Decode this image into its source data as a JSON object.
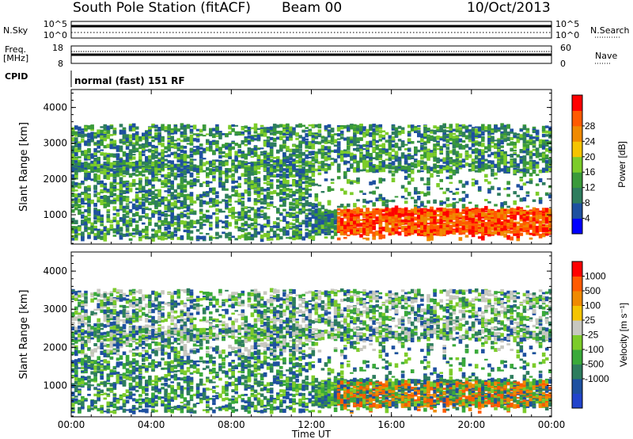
{
  "header": {
    "station": "South Pole Station (fitACF)",
    "beam": "Beam 00",
    "date": "10/Oct/2013"
  },
  "strips": {
    "nsky_label": "N.Sky",
    "nsearch_label": "N.Search",
    "freq_label_1": "Freq.",
    "freq_label_2": "[MHz]",
    "nave_label": "Nave",
    "cpid_label": "CPID",
    "cpid_value": "normal (fast) 151 RF",
    "nsky_ticks": [
      "10^5",
      "10^0"
    ],
    "nsearch_ticks": [
      "10^5",
      "10^0"
    ],
    "freq_ticks": [
      "18",
      "8"
    ],
    "nave_ticks": [
      "60",
      "0"
    ]
  },
  "colors": {
    "power_scale": [
      "#0000ff",
      "#1e50a0",
      "#2e7d5e",
      "#3a9a3a",
      "#7ccc2a",
      "#f5c400",
      "#f08a00",
      "#ff5a00",
      "#ff0000"
    ],
    "velocity_scale": [
      "#2244cc",
      "#1e50a0",
      "#2e7d5e",
      "#3aaa3a",
      "#7ccc2a",
      "#c8c8c0",
      "#f5c400",
      "#f08a00",
      "#ff5a00",
      "#ff0000"
    ]
  },
  "chart_data": [
    {
      "type": "heatmap",
      "name": "power",
      "ylabel": "Slant Range [km]",
      "xlabel": "",
      "xlim": [
        "00:00",
        "24:00"
      ],
      "ylim": [
        180,
        4500
      ],
      "y_ticks": [
        "1000",
        "2000",
        "3000",
        "4000"
      ],
      "colorbar": {
        "label": "Power [dB]",
        "range": [
          0,
          32
        ],
        "ticks": [
          "4",
          "8",
          "12",
          "16",
          "20",
          "24",
          "28"
        ]
      }
    },
    {
      "type": "heatmap",
      "name": "velocity",
      "ylabel": "Slant Range [km]",
      "xlabel": "Time UT",
      "xlim": [
        "00:00",
        "24:00"
      ],
      "ylim": [
        180,
        4500
      ],
      "x_ticks": [
        "00:00",
        "04:00",
        "08:00",
        "12:00",
        "16:00",
        "20:00",
        "00:00"
      ],
      "y_ticks": [
        "1000",
        "2000",
        "3000",
        "4000"
      ],
      "colorbar": {
        "label": "Velocity [m s⁻¹]",
        "ticks": [
          "1000",
          "500",
          "100",
          "25",
          "-25",
          "-100",
          "-500",
          "-1000"
        ]
      }
    }
  ]
}
